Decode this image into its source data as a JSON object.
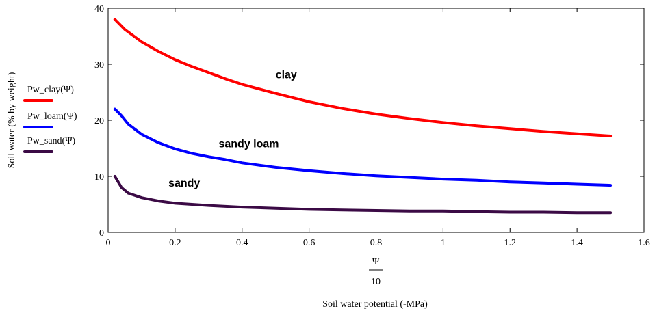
{
  "chart_data": {
    "type": "line",
    "xlabel": "Soil water potential (-MPa)",
    "x_expr_numerator": "Ψ",
    "x_expr_denominator": "10",
    "ylabel": "Soil water (% by weight)",
    "xlim": [
      0,
      1.6
    ],
    "ylim": [
      0,
      40
    ],
    "xticks": [
      0,
      0.2,
      0.4,
      0.6,
      0.8,
      1,
      1.2,
      1.4,
      1.6
    ],
    "xtick_labels": [
      "0",
      "0.2",
      "0.4",
      "0.6",
      "0.8",
      "1",
      "1.2",
      "1.4",
      "1.6"
    ],
    "yticks": [
      0,
      10,
      20,
      30,
      40
    ],
    "ytick_labels": [
      "0",
      "10",
      "20",
      "30",
      "40"
    ],
    "grid": false,
    "legend_position": "left",
    "series": [
      {
        "name": "Pw_clay(Ψ)",
        "color": "#ff0000",
        "x": [
          0.02,
          0.05,
          0.1,
          0.15,
          0.2,
          0.25,
          0.3,
          0.35,
          0.4,
          0.5,
          0.6,
          0.7,
          0.8,
          0.9,
          1.0,
          1.1,
          1.2,
          1.3,
          1.4,
          1.5
        ],
        "y": [
          38,
          36.2,
          34,
          32.3,
          30.8,
          29.6,
          28.5,
          27.4,
          26.4,
          24.8,
          23.3,
          22.1,
          21.1,
          20.3,
          19.6,
          19.0,
          18.5,
          18.0,
          17.6,
          17.2
        ]
      },
      {
        "name": "Pw_loam(Ψ)",
        "color": "#0000ff",
        "x": [
          0.02,
          0.04,
          0.06,
          0.08,
          0.1,
          0.15,
          0.2,
          0.25,
          0.3,
          0.35,
          0.4,
          0.5,
          0.6,
          0.7,
          0.8,
          0.9,
          1.0,
          1.1,
          1.2,
          1.3,
          1.4,
          1.5
        ],
        "y": [
          22,
          20.8,
          19.3,
          18.4,
          17.5,
          16.0,
          14.9,
          14.1,
          13.5,
          13.0,
          12.4,
          11.6,
          11.0,
          10.5,
          10.1,
          9.8,
          9.5,
          9.3,
          9.0,
          8.8,
          8.6,
          8.4
        ]
      },
      {
        "name": "Pw_sand(Ψ)",
        "color": "#3b0a45",
        "x": [
          0.02,
          0.03,
          0.04,
          0.05,
          0.06,
          0.08,
          0.1,
          0.15,
          0.2,
          0.3,
          0.4,
          0.5,
          0.6,
          0.7,
          0.8,
          0.9,
          1.0,
          1.1,
          1.2,
          1.3,
          1.4,
          1.5
        ],
        "y": [
          10,
          9.0,
          8.0,
          7.5,
          7.0,
          6.6,
          6.2,
          5.6,
          5.2,
          4.8,
          4.5,
          4.3,
          4.1,
          4.0,
          3.9,
          3.8,
          3.8,
          3.7,
          3.6,
          3.6,
          3.5,
          3.5
        ]
      }
    ],
    "annotations": [
      {
        "text": "clay",
        "x": 0.5,
        "y": 27.5
      },
      {
        "text": "sandy loam",
        "x": 0.33,
        "y": 15.2
      },
      {
        "text": "sandy",
        "x": 0.18,
        "y": 8.2
      }
    ]
  }
}
